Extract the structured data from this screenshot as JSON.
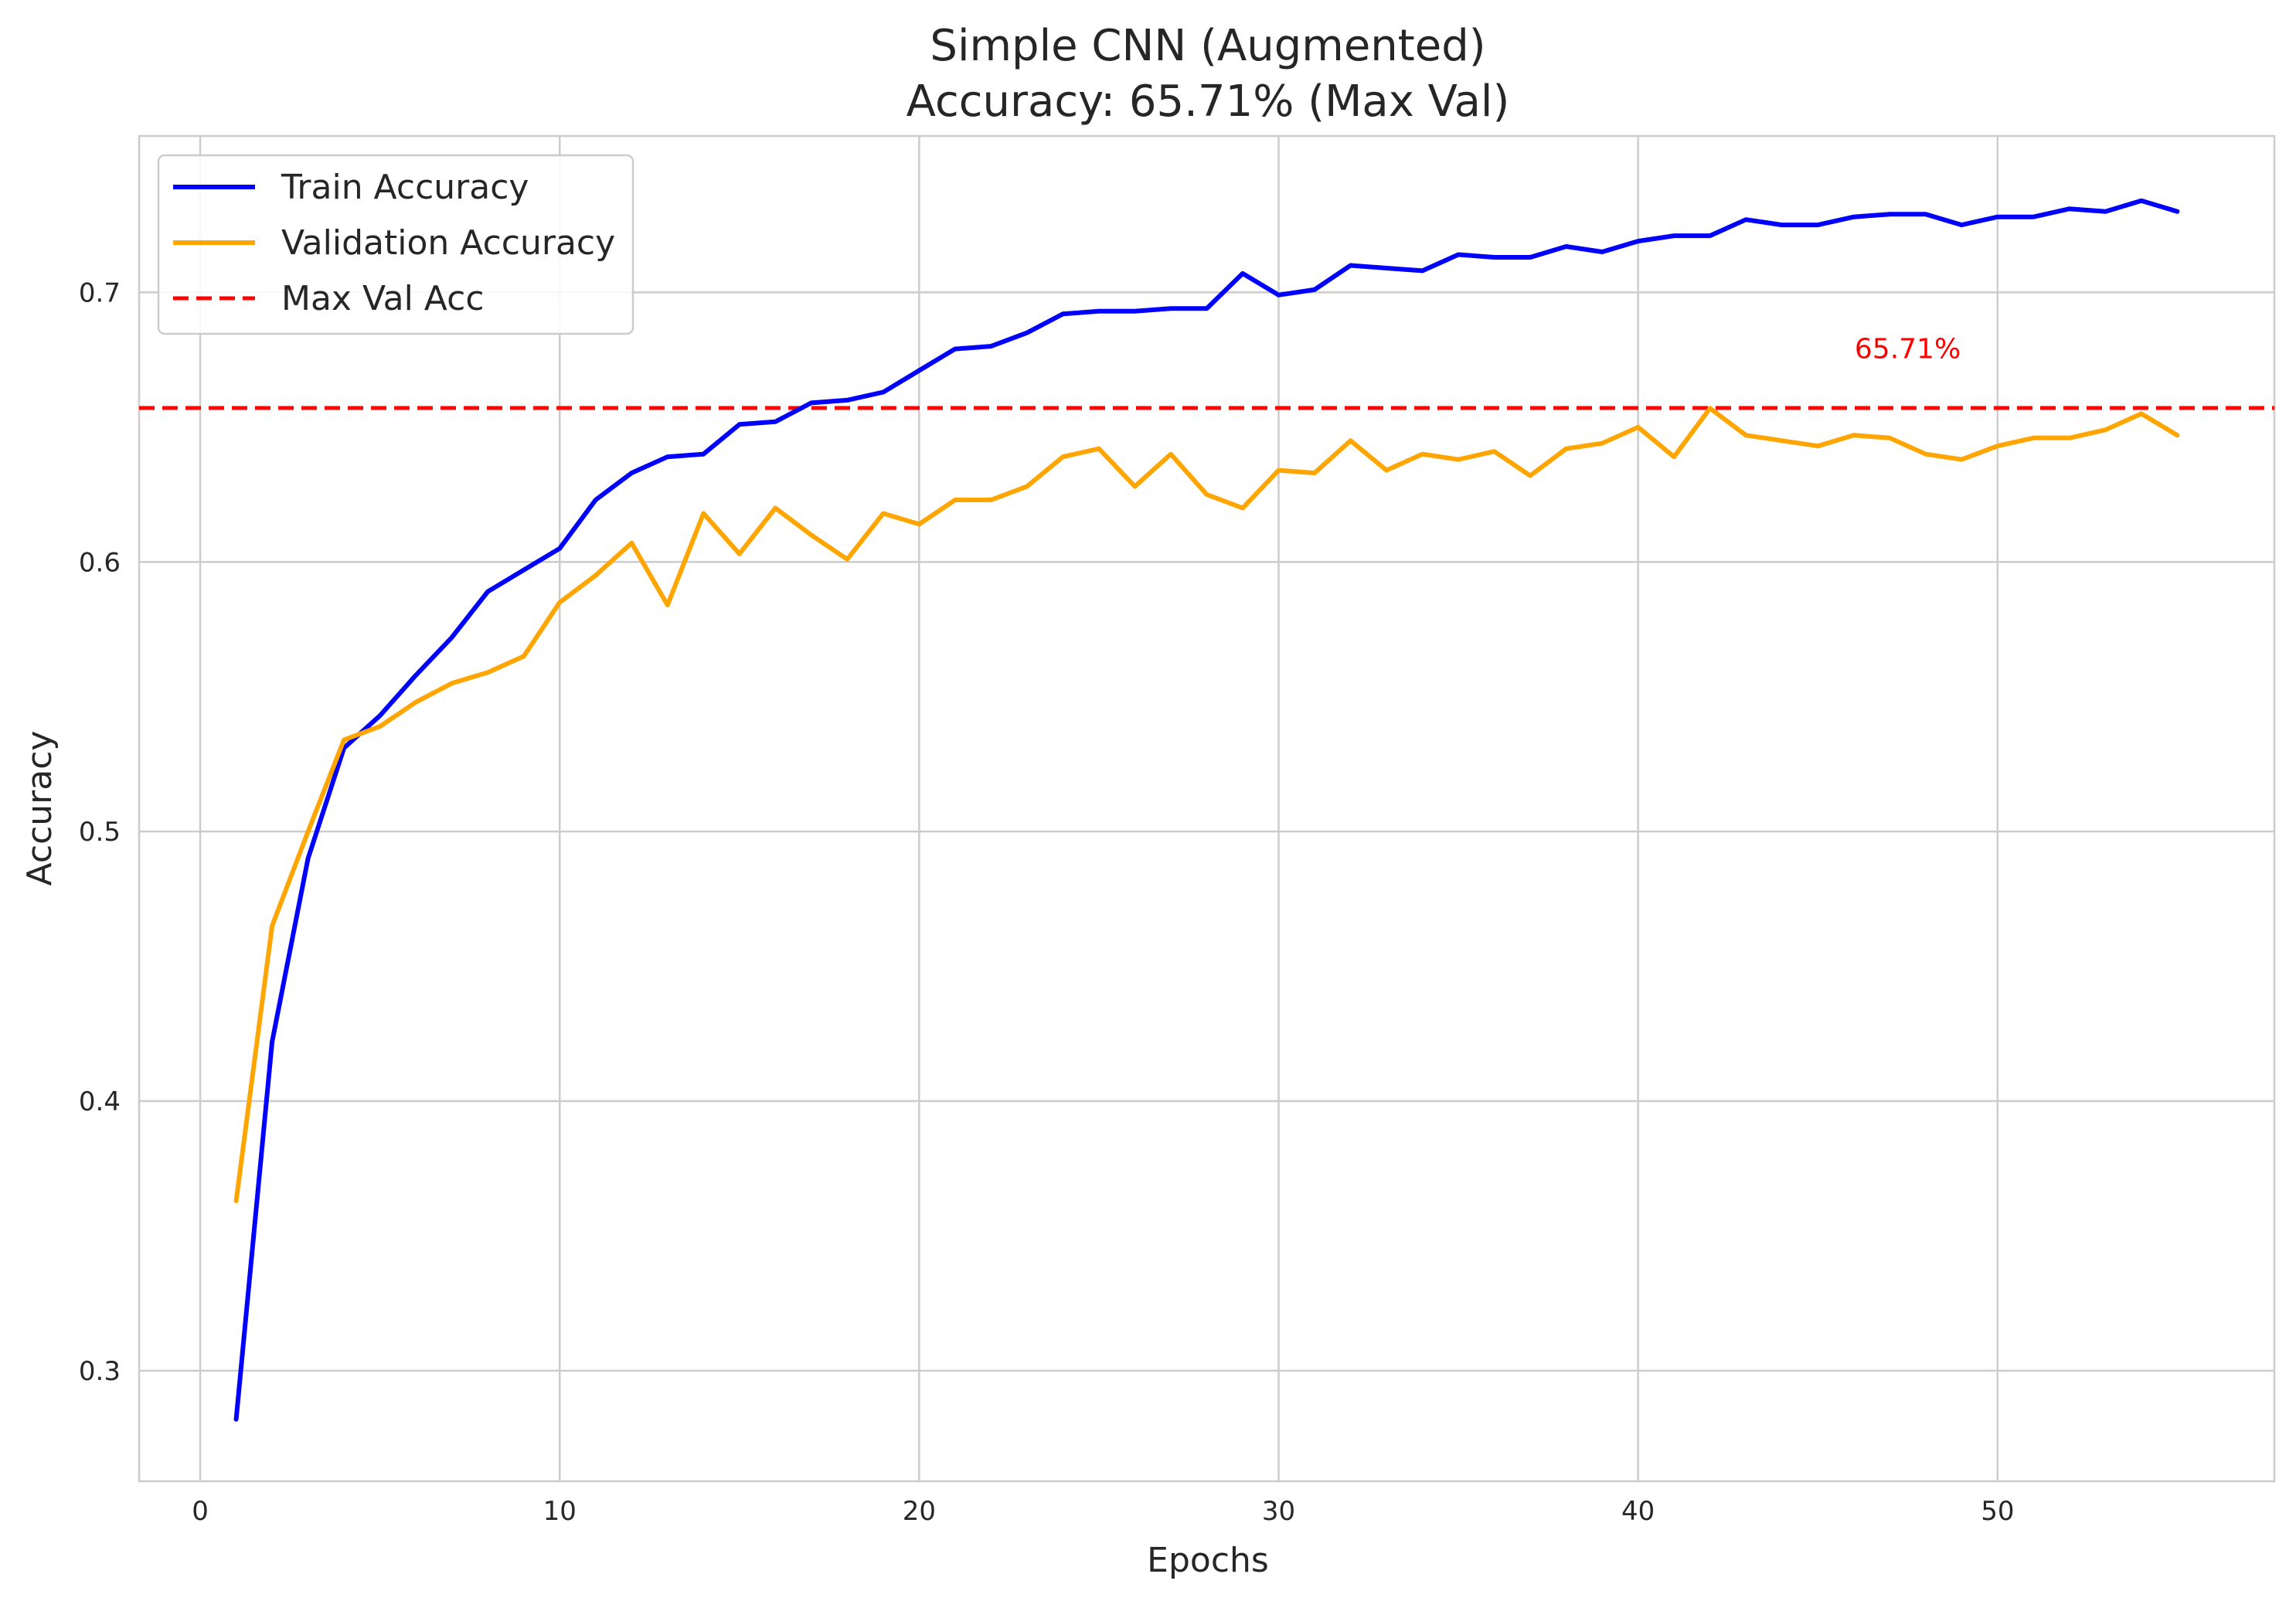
{
  "chart_data": {
    "type": "line",
    "title": "Simple CNN (Augmented)",
    "subtitle": "Accuracy: 65.71% (Max Val)",
    "xlabel": "Epochs",
    "ylabel": "Accuracy",
    "xlim": [
      -1.7,
      57.7
    ],
    "ylim": [
      0.259,
      0.758
    ],
    "xticks": [
      0,
      10,
      20,
      30,
      40,
      50
    ],
    "yticks": [
      0.3,
      0.4,
      0.5,
      0.6,
      0.7
    ],
    "x_tick_labels": [
      "0",
      "10",
      "20",
      "30",
      "40",
      "50"
    ],
    "y_tick_labels": [
      "0.3",
      "0.4",
      "0.5",
      "0.6",
      "0.7"
    ],
    "grid": true,
    "legend_position": "top-left",
    "x": [
      1,
      2,
      3,
      4,
      5,
      6,
      7,
      8,
      9,
      10,
      11,
      12,
      13,
      14,
      15,
      16,
      17,
      18,
      19,
      20,
      21,
      22,
      23,
      24,
      25,
      26,
      27,
      28,
      29,
      30,
      31,
      32,
      33,
      34,
      35,
      36,
      37,
      38,
      39,
      40,
      41,
      42,
      43,
      44,
      45,
      46,
      47,
      48,
      49,
      50,
      51,
      52,
      53,
      54,
      55
    ],
    "series": [
      {
        "name": "Train Accuracy",
        "color": "#0000ff",
        "line_style": "solid",
        "values": [
          0.282,
          0.422,
          0.49,
          0.531,
          0.543,
          0.558,
          0.572,
          0.589,
          0.597,
          0.605,
          0.623,
          0.633,
          0.639,
          0.64,
          0.651,
          0.652,
          0.659,
          0.66,
          0.663,
          0.671,
          0.679,
          0.68,
          0.685,
          0.692,
          0.693,
          0.693,
          0.694,
          0.694,
          0.707,
          0.699,
          0.701,
          0.71,
          0.709,
          0.708,
          0.714,
          0.713,
          0.713,
          0.717,
          0.715,
          0.719,
          0.721,
          0.721,
          0.727,
          0.725,
          0.725,
          0.728,
          0.729,
          0.729,
          0.725,
          0.728,
          0.728,
          0.731,
          0.73,
          0.734,
          0.73
        ]
      },
      {
        "name": "Validation Accuracy",
        "color": "#ffa500",
        "line_style": "solid",
        "values": [
          0.363,
          0.465,
          0.5,
          0.534,
          0.539,
          0.548,
          0.555,
          0.559,
          0.565,
          0.585,
          0.595,
          0.607,
          0.584,
          0.618,
          0.603,
          0.62,
          0.61,
          0.601,
          0.618,
          0.614,
          0.623,
          0.623,
          0.628,
          0.639,
          0.642,
          0.628,
          0.64,
          0.625,
          0.62,
          0.634,
          0.633,
          0.645,
          0.634,
          0.64,
          0.638,
          0.641,
          0.632,
          0.642,
          0.644,
          0.65,
          0.639,
          0.657,
          0.647,
          0.645,
          0.643,
          0.647,
          0.646,
          0.64,
          0.638,
          0.643,
          0.646,
          0.646,
          0.649,
          0.655,
          0.647
        ]
      }
    ],
    "reference_lines": [
      {
        "name": "Max Val Acc",
        "y": 0.6571,
        "color": "#ff0000",
        "line_style": "dashed"
      }
    ],
    "annotations": [
      {
        "text": "65.71%",
        "x": 47.5,
        "y": 0.679,
        "color": "#ff0000"
      }
    ]
  }
}
